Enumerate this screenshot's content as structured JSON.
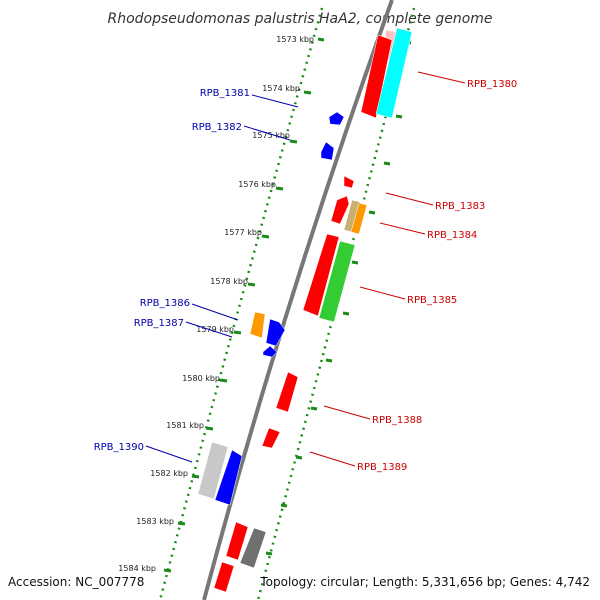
{
  "map": {
    "title": "Rhodopseudomonas palustris HaA2, complete genome",
    "accession": "Accession: NC_007778",
    "topology": "Topology: circular; Length: 5,331,656 bp; Genes: 4,742",
    "colors": {
      "backbone": "#777777",
      "ruler": "#1a8a1a",
      "forward_label": "#0000aa",
      "reverse_label": "#cc0000",
      "red": "#ff0000",
      "blue": "#0000ff",
      "cyan": "#00ffff",
      "pink": "#ffc0c0",
      "green": "#33cc33",
      "orange": "#ff9900",
      "tan": "#c8b070",
      "silver": "#c8c8c8",
      "gray": "#707070"
    },
    "kbp_ticks": [
      "1573 kbp",
      "1574 kbp",
      "1575 kbp",
      "1576 kbp",
      "1577 kbp",
      "1578 kbp",
      "1579 kbp",
      "1580 kbp",
      "1581 kbp",
      "1582 kbp",
      "1583 kbp",
      "1584 kbp"
    ],
    "labels_left": [
      "RPB_1381",
      "RPB_1382",
      "RPB_1386",
      "RPB_1387",
      "RPB_1390"
    ],
    "labels_right": [
      "RPB_1380",
      "RPB_1383",
      "RPB_1384",
      "RPB_1385",
      "RPB_1388",
      "RPB_1389"
    ]
  }
}
